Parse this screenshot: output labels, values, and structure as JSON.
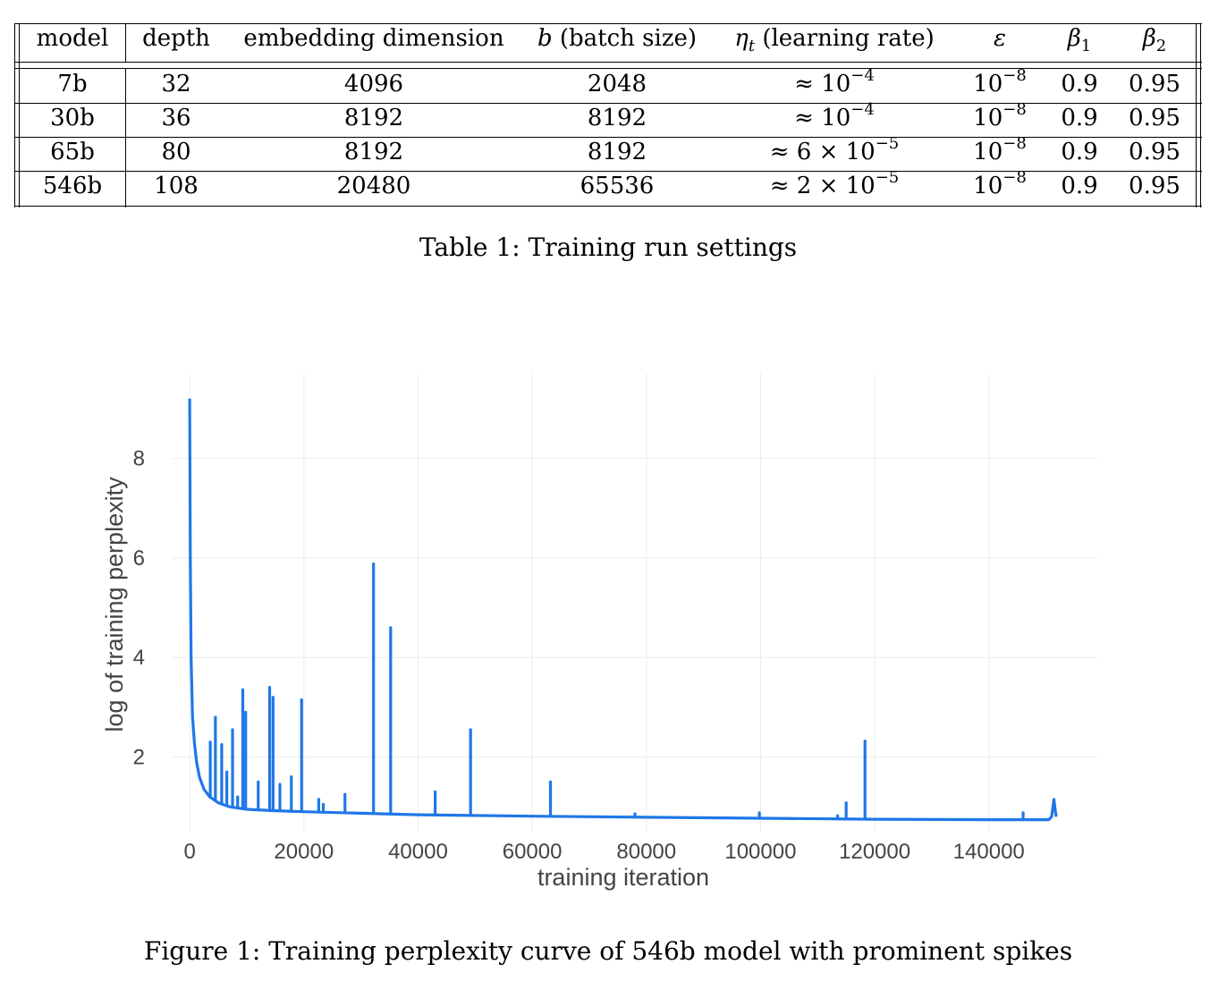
{
  "table": {
    "headers": [
      "model",
      "depth",
      "embedding dimension",
      "b (batch size)",
      "ηt (learning rate)",
      "ε",
      "β1",
      "β2"
    ],
    "rows": [
      [
        "7b",
        "32",
        "4096",
        "2048",
        "≈ 10−4",
        "10−8",
        "0.9",
        "0.95"
      ],
      [
        "30b",
        "36",
        "8192",
        "8192",
        "≈ 10−4",
        "10−8",
        "0.9",
        "0.95"
      ],
      [
        "65b",
        "80",
        "8192",
        "8192",
        "≈ 6 × 10−5",
        "10−8",
        "0.9",
        "0.95"
      ],
      [
        "546b",
        "108",
        "20480",
        "65536",
        "≈ 2 × 10−5",
        "10−8",
        "0.9",
        "0.95"
      ]
    ],
    "caption": "Table 1: Training run settings"
  },
  "figure": {
    "caption": "Figure 1: Training perplexity curve of 546b model with prominent spikes"
  },
  "chart_data": {
    "type": "line",
    "xlabel": "training iteration",
    "ylabel": "log of training perplexity",
    "x_ticks": [
      0,
      20000,
      40000,
      60000,
      80000,
      100000,
      120000,
      140000
    ],
    "y_ticks": [
      2,
      4,
      6,
      8
    ],
    "xlim": [
      -3000,
      159000
    ],
    "ylim": [
      0.5,
      9.7
    ],
    "grid": true,
    "line_color": "#1f77e8",
    "baseline": [
      [
        0,
        9.2
      ],
      [
        100,
        6.0
      ],
      [
        250,
        4.0
      ],
      [
        500,
        2.8
      ],
      [
        800,
        2.3
      ],
      [
        1200,
        1.9
      ],
      [
        1700,
        1.6
      ],
      [
        2500,
        1.35
      ],
      [
        3500,
        1.2
      ],
      [
        5000,
        1.08
      ],
      [
        7000,
        1.0
      ],
      [
        10000,
        0.95
      ],
      [
        15000,
        0.92
      ],
      [
        20000,
        0.9
      ],
      [
        30000,
        0.87
      ],
      [
        40000,
        0.84
      ],
      [
        60000,
        0.81
      ],
      [
        80000,
        0.79
      ],
      [
        100000,
        0.77
      ],
      [
        120000,
        0.75
      ],
      [
        140000,
        0.74
      ],
      [
        150500,
        0.74
      ],
      [
        151000,
        0.8
      ],
      [
        151400,
        1.15
      ],
      [
        151600,
        0.95
      ],
      [
        151800,
        0.8
      ]
    ],
    "spikes": [
      [
        3600,
        2.3
      ],
      [
        4500,
        2.8
      ],
      [
        5600,
        2.25
      ],
      [
        6500,
        1.7
      ],
      [
        7500,
        2.55
      ],
      [
        8400,
        1.2
      ],
      [
        9300,
        3.35
      ],
      [
        9800,
        2.9
      ],
      [
        12000,
        1.5
      ],
      [
        14000,
        3.4
      ],
      [
        14600,
        3.2
      ],
      [
        15800,
        1.45
      ],
      [
        17800,
        1.6
      ],
      [
        19600,
        3.15
      ],
      [
        22600,
        1.15
      ],
      [
        23400,
        1.05
      ],
      [
        27200,
        1.25
      ],
      [
        32200,
        5.88
      ],
      [
        35200,
        4.6
      ],
      [
        43000,
        1.3
      ],
      [
        49200,
        2.55
      ],
      [
        63200,
        1.5
      ],
      [
        78000,
        0.86
      ],
      [
        99800,
        0.88
      ],
      [
        113500,
        0.82
      ],
      [
        115000,
        1.08
      ],
      [
        118300,
        2.32
      ],
      [
        146000,
        0.88
      ]
    ]
  }
}
